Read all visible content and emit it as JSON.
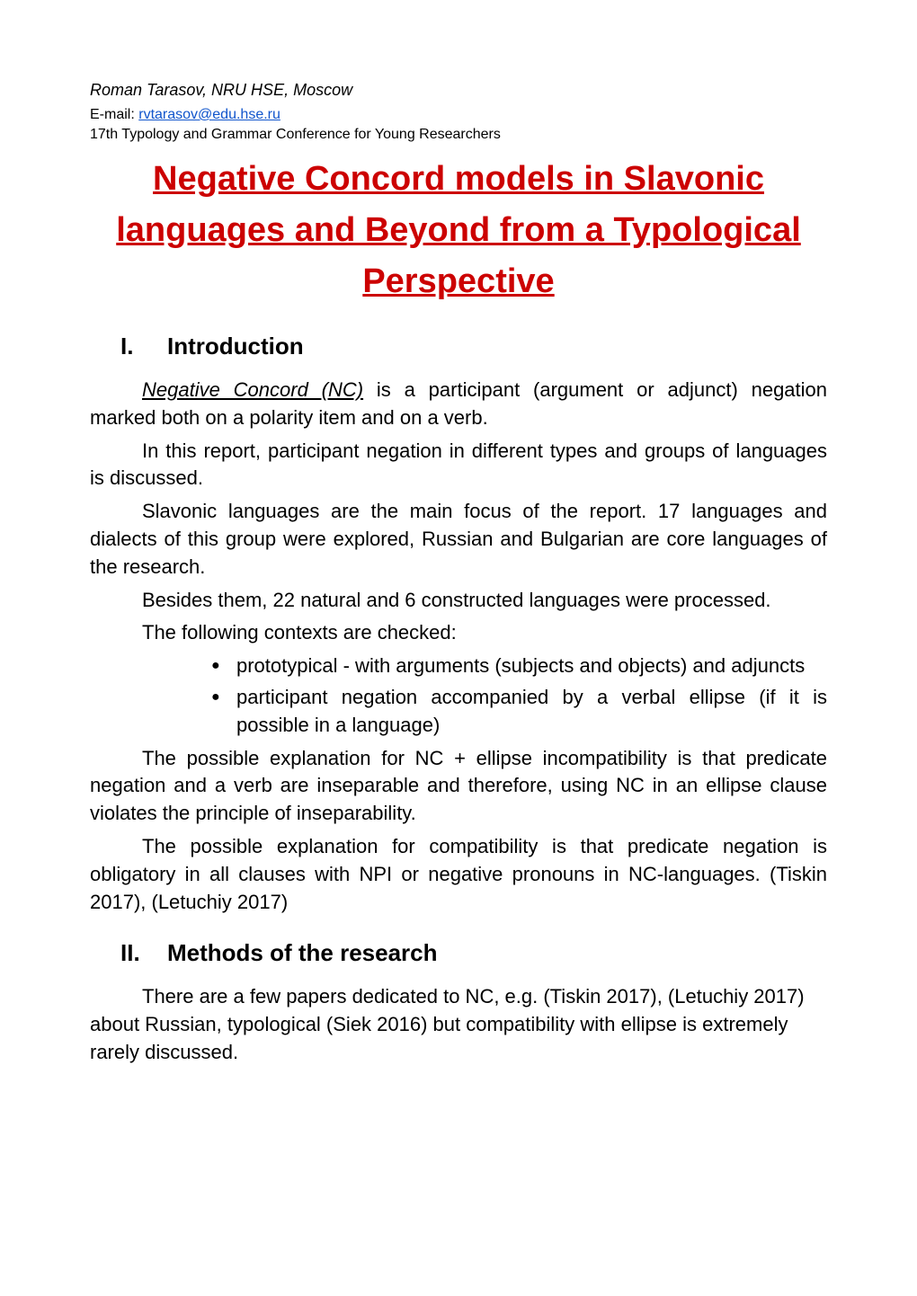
{
  "header": {
    "author": "Roman Tarasov, NRU HSE, Moscow",
    "email_label": "E-mail: ",
    "email": "rvtarasov@edu.hse.ru",
    "conference": "17th Typology and Grammar Conference for Young Researchers"
  },
  "title": "Negative Concord models in Slavonic languages and Beyond from a Typological Perspective",
  "section1": {
    "number": "I.",
    "heading": "Introduction",
    "term": "Negative Concord (NC)",
    "p1_rest": " is a participant (argument or adjunct) negation marked both on a polarity item and on a verb.",
    "p2": "In this report, participant negation in different types and groups of languages is discussed.",
    "p3": "Slavonic languages are the main focus of the report. 17 languages and dialects of this group were explored, Russian and Bulgarian are core languages of the research.",
    "p4": "Besides them, 22 natural and 6 constructed languages were processed.",
    "p5": "The following contexts are checked:",
    "bullets": [
      "prototypical - with arguments (subjects and objects) and adjuncts",
      "participant negation accompanied by a verbal ellipse (if it is possible in a language)"
    ],
    "p6": "The possible explanation for NC + ellipse incompatibility is that predicate negation and a verb are inseparable and therefore, using NC in an ellipse clause violates the principle of inseparability.",
    "p7": "The possible explanation for compatibility is that predicate negation is obligatory in all clauses with NPI or negative pronouns in NC-languages. (Tiskin 2017), (Letuchiy 2017)"
  },
  "section2": {
    "number": "II.",
    "heading": "Methods of the research",
    "p1": "There are a few papers dedicated to NC, e.g. (Tiskin 2017), (Letuchiy 2017) about Russian, typological (Siek 2016) but compatibility with ellipse is extremely rarely discussed."
  },
  "colors": {
    "title_color": "#cc0000",
    "link_color": "#1155cc",
    "text_color": "#000000",
    "background": "#ffffff"
  }
}
